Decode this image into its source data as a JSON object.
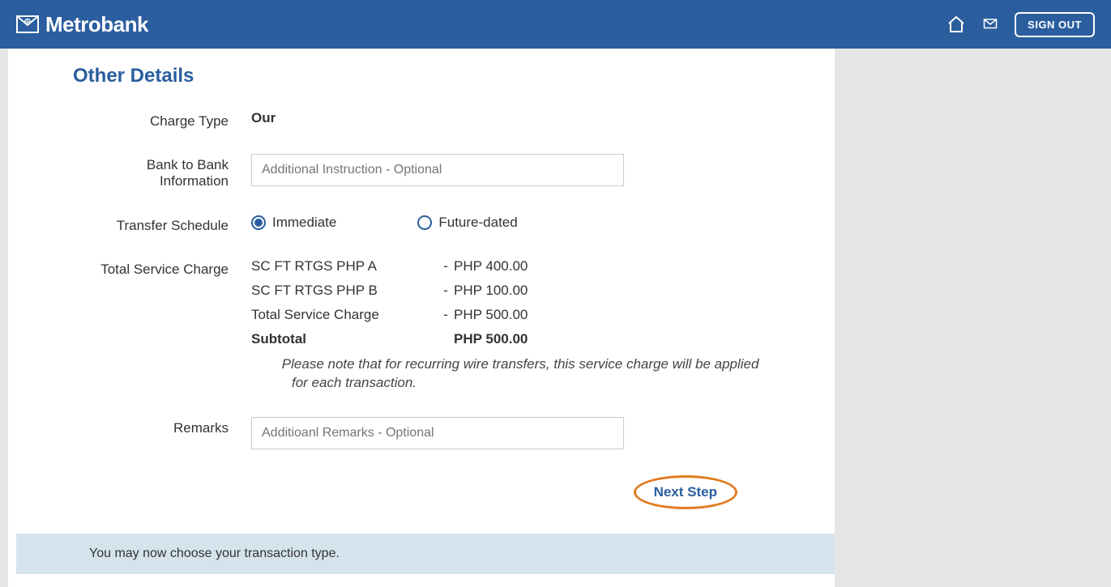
{
  "header": {
    "brand": "Metrobank",
    "signOut": "SIGN OUT"
  },
  "section": {
    "title": "Other Details"
  },
  "form": {
    "chargeType": {
      "label": "Charge Type",
      "value": "Our"
    },
    "bankToBank": {
      "labelLine1": "Bank to Bank",
      "labelLine2": "Information",
      "placeholder": "Additional Instruction - Optional"
    },
    "transferSchedule": {
      "label": "Transfer Schedule",
      "options": {
        "immediate": "Immediate",
        "futureDated": "Future-dated"
      },
      "selected": "immediate"
    },
    "serviceCharge": {
      "label": "Total Service Charge",
      "lines": [
        {
          "desc": "SC FT RTGS PHP A",
          "sep": "-",
          "amount": "PHP 400.00",
          "bold": false
        },
        {
          "desc": "SC FT RTGS PHP B",
          "sep": "-",
          "amount": "PHP 100.00",
          "bold": false
        },
        {
          "desc": "Total Service Charge",
          "sep": "-",
          "amount": "PHP 500.00",
          "bold": false
        },
        {
          "desc": "Subtotal",
          "sep": "",
          "amount": "PHP 500.00",
          "bold": true
        }
      ],
      "note": "Please note that for recurring wire transfers, this service charge will be applied for each transaction."
    },
    "remarks": {
      "label": "Remarks",
      "placeholder": "Additioanl Remarks - Optional"
    }
  },
  "actions": {
    "nextStep": "Next Step"
  },
  "banner": {
    "text": "You may now choose your transaction type."
  },
  "colors": {
    "headerBg": "#2a5e9e",
    "accent": "#2a5e9e",
    "highlightBorder": "#e07b1f",
    "bannerBg": "#d5e3ec",
    "pageBg": "#e5e5e5"
  }
}
